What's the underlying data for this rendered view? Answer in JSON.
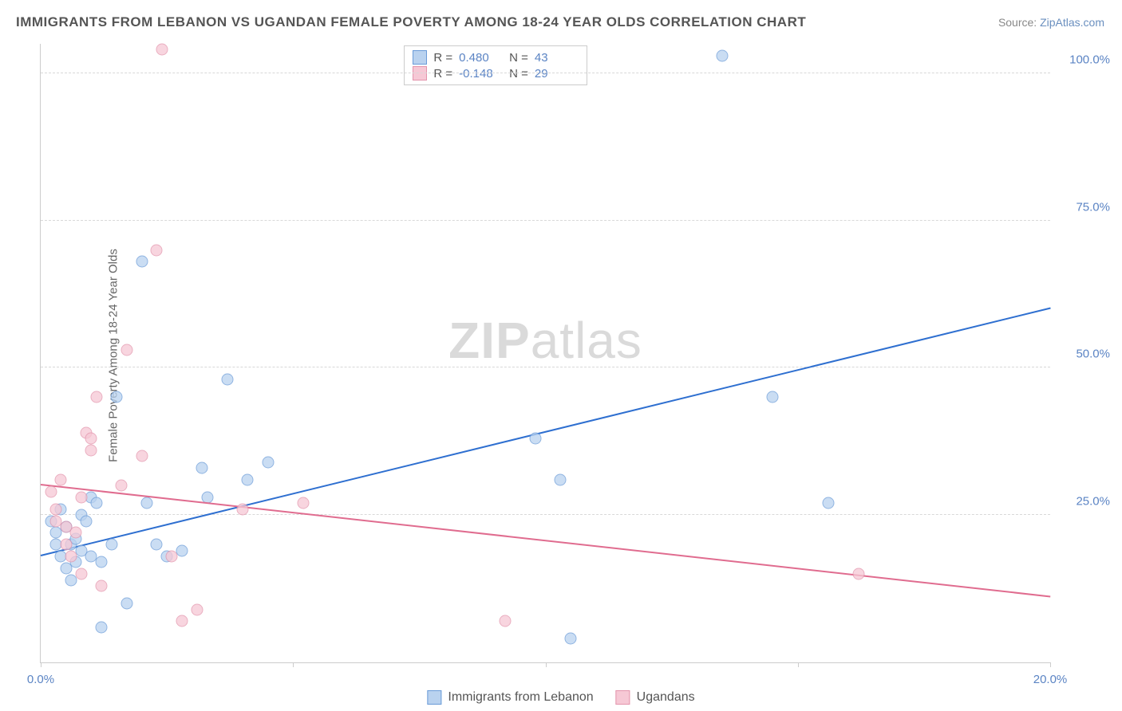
{
  "title": "IMMIGRANTS FROM LEBANON VS UGANDAN FEMALE POVERTY AMONG 18-24 YEAR OLDS CORRELATION CHART",
  "source": {
    "label": "Source: ",
    "value": "ZipAtlas.com"
  },
  "y_axis_label": "Female Poverty Among 18-24 Year Olds",
  "watermark": "ZIPatlas",
  "chart": {
    "type": "scatter",
    "background_color": "#ffffff",
    "grid_color": "#d8d8d8",
    "axis_color": "#cccccc",
    "xlim": [
      0,
      20
    ],
    "ylim": [
      0,
      105
    ],
    "x_ticks": [
      0,
      5,
      10,
      15,
      20
    ],
    "x_tick_labels": [
      "0.0%",
      "",
      "",
      "",
      "20.0%"
    ],
    "y_ticks": [
      25,
      50,
      75,
      100
    ],
    "y_tick_labels": [
      "25.0%",
      "50.0%",
      "75.0%",
      "100.0%"
    ],
    "tick_label_color": "#5b84c4",
    "tick_label_fontsize": 15,
    "series": [
      {
        "name": "Immigrants from Lebanon",
        "fill": "#b9d2ef",
        "stroke": "#6a9bd8",
        "marker_size": 15,
        "opacity": 0.75,
        "R": "0.480",
        "N": "43",
        "trend": {
          "x1": 0,
          "y1": 18,
          "x2": 20,
          "y2": 60,
          "color": "#2e6fd0",
          "width": 2
        },
        "points": [
          [
            0.2,
            24
          ],
          [
            0.3,
            22
          ],
          [
            0.3,
            20
          ],
          [
            0.4,
            18
          ],
          [
            0.4,
            26
          ],
          [
            0.5,
            23
          ],
          [
            0.5,
            16
          ],
          [
            0.6,
            20
          ],
          [
            0.6,
            14
          ],
          [
            0.7,
            21
          ],
          [
            0.7,
            17
          ],
          [
            0.8,
            25
          ],
          [
            0.8,
            19
          ],
          [
            0.9,
            24
          ],
          [
            1.0,
            28
          ],
          [
            1.0,
            18
          ],
          [
            1.1,
            27
          ],
          [
            1.2,
            17
          ],
          [
            1.2,
            6
          ],
          [
            1.4,
            20
          ],
          [
            1.5,
            45
          ],
          [
            1.7,
            10
          ],
          [
            2.0,
            68
          ],
          [
            2.1,
            27
          ],
          [
            2.3,
            20
          ],
          [
            2.5,
            18
          ],
          [
            2.8,
            19
          ],
          [
            3.2,
            33
          ],
          [
            3.3,
            28
          ],
          [
            3.7,
            48
          ],
          [
            4.1,
            31
          ],
          [
            4.5,
            34
          ],
          [
            9.8,
            38
          ],
          [
            10.3,
            31
          ],
          [
            10.5,
            4
          ],
          [
            13.5,
            103
          ],
          [
            14.5,
            45
          ],
          [
            15.6,
            27
          ]
        ]
      },
      {
        "name": "Ugandans",
        "fill": "#f6c8d5",
        "stroke": "#e394ac",
        "marker_size": 15,
        "opacity": 0.75,
        "R": "-0.148",
        "N": "29",
        "trend": {
          "x1": 0,
          "y1": 30,
          "x2": 20,
          "y2": 11,
          "color": "#e06c8f",
          "width": 2
        },
        "points": [
          [
            0.2,
            29
          ],
          [
            0.3,
            26
          ],
          [
            0.3,
            24
          ],
          [
            0.4,
            31
          ],
          [
            0.5,
            20
          ],
          [
            0.5,
            23
          ],
          [
            0.6,
            18
          ],
          [
            0.7,
            22
          ],
          [
            0.8,
            15
          ],
          [
            0.8,
            28
          ],
          [
            0.9,
            39
          ],
          [
            1.0,
            36
          ],
          [
            1.0,
            38
          ],
          [
            1.1,
            45
          ],
          [
            1.2,
            13
          ],
          [
            1.6,
            30
          ],
          [
            1.7,
            53
          ],
          [
            2.0,
            35
          ],
          [
            2.3,
            70
          ],
          [
            2.4,
            104
          ],
          [
            2.6,
            18
          ],
          [
            2.8,
            7
          ],
          [
            3.1,
            9
          ],
          [
            4.0,
            26
          ],
          [
            5.2,
            27
          ],
          [
            9.2,
            7
          ],
          [
            16.2,
            15
          ]
        ]
      }
    ]
  },
  "bottom_legend": [
    {
      "label": "Immigrants from Lebanon",
      "fill": "#b9d2ef",
      "stroke": "#6a9bd8"
    },
    {
      "label": "Ugandans",
      "fill": "#f6c8d5",
      "stroke": "#e394ac"
    }
  ]
}
